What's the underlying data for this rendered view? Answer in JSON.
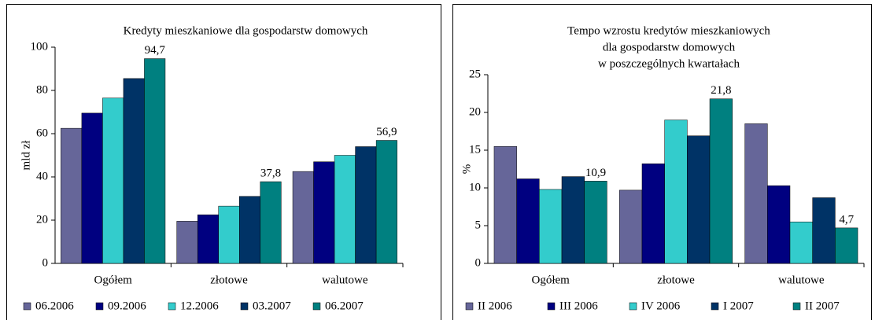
{
  "chart_data": [
    {
      "type": "bar",
      "title": [
        "Kredyty mieszkaniowe dla gospodarstw domowych"
      ],
      "ylabel": "mld zł",
      "categories": [
        "Ogółem",
        "złotowe",
        "walutowe"
      ],
      "series": [
        {
          "name": "06.2006",
          "color": "#666699",
          "values": [
            62.5,
            19.5,
            42.5
          ]
        },
        {
          "name": "09.2006",
          "color": "#000080",
          "values": [
            69.5,
            22.5,
            47
          ]
        },
        {
          "name": "12.2006",
          "color": "#33cccc",
          "values": [
            76.5,
            26.5,
            50
          ]
        },
        {
          "name": "03.2007",
          "color": "#003366",
          "values": [
            85.5,
            31,
            54
          ]
        },
        {
          "name": "06.2007",
          "color": "#008080",
          "values": [
            94.7,
            37.8,
            56.9
          ],
          "value_labels": [
            "94,7",
            "37,8",
            "56,9"
          ]
        }
      ],
      "ylim": [
        0,
        100
      ],
      "yticks": [
        0,
        20,
        40,
        60,
        80,
        100
      ],
      "grid": false,
      "legend": "bottom"
    },
    {
      "type": "bar",
      "title": [
        "Tempo wzrostu kredytów mieszkaniowych",
        "dla gospodarstw domowych",
        "w poszczególnych kwartałach"
      ],
      "ylabel": "%",
      "categories": [
        "Ogółem",
        "złotowe",
        "walutowe"
      ],
      "series": [
        {
          "name": "II 2006",
          "color": "#666699",
          "values": [
            15.5,
            9.7,
            18.5
          ]
        },
        {
          "name": "III 2006",
          "color": "#000080",
          "values": [
            11.2,
            13.2,
            10.3
          ]
        },
        {
          "name": "IV 2006",
          "color": "#33cccc",
          "values": [
            9.8,
            19,
            5.5
          ]
        },
        {
          "name": "I 2007",
          "color": "#003366",
          "values": [
            11.5,
            16.9,
            8.7
          ]
        },
        {
          "name": "II 2007",
          "color": "#008080",
          "values": [
            10.9,
            21.8,
            4.7
          ],
          "value_labels": [
            "10,9",
            "21,8",
            "4,7"
          ]
        }
      ],
      "ylim": [
        0,
        25
      ],
      "yticks": [
        0,
        5,
        10,
        15,
        20,
        25
      ],
      "grid": false,
      "legend": "bottom"
    }
  ]
}
